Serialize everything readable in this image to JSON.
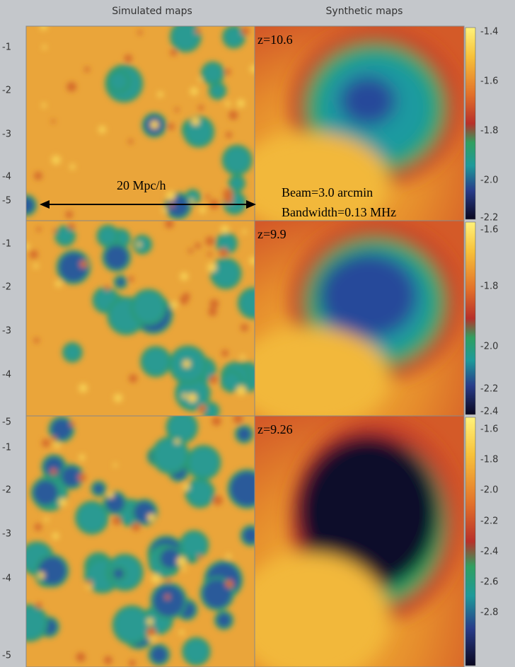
{
  "header": {
    "left": "Simulated maps",
    "right": "Synthetic maps"
  },
  "panels": [
    {
      "redshift": "z=10.6",
      "axis_ticks": [
        "-1",
        "-2",
        "-3",
        "-4",
        "-5"
      ],
      "colorbar_ticks": [
        "-1.4",
        "-1.6",
        "-1.8",
        "-2.0",
        "-2.2"
      ]
    },
    {
      "redshift": "z=9.9",
      "axis_ticks": [
        "-1",
        "-2",
        "-3",
        "-4",
        "-5"
      ],
      "colorbar_ticks": [
        "-1.6",
        "-1.8",
        "-2.0",
        "-2.2",
        "-2.4"
      ]
    },
    {
      "redshift": "z=9.26",
      "axis_ticks": [
        "-1",
        "-2",
        "-3",
        "-4",
        "-5"
      ],
      "colorbar_ticks": [
        "-1.6",
        "-1.8",
        "-2.0",
        "-2.2",
        "-2.4",
        "-2.6",
        "-2.8"
      ]
    }
  ],
  "annotations": {
    "scale": "20 Mpc/h",
    "beam": "Beam=3.0 arcmin",
    "bandwidth": "Bandwidth=0.13 MHz"
  }
}
